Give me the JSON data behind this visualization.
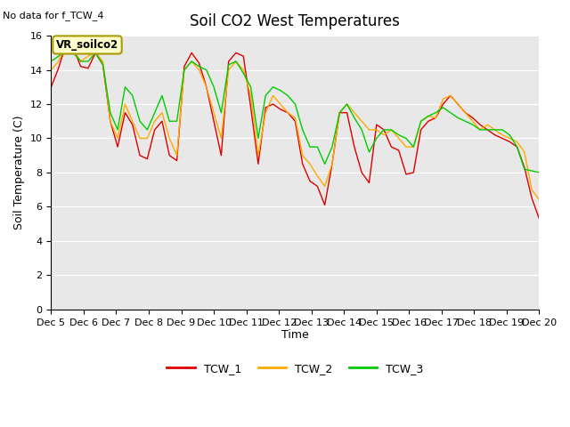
{
  "title": "Soil CO2 West Temperatures",
  "subtitle": "No data for f_TCW_4",
  "xlabel": "Time",
  "ylabel": "Soil Temperature (C)",
  "ylim": [
    0,
    16
  ],
  "yticks": [
    0,
    2,
    4,
    6,
    8,
    10,
    12,
    14,
    16
  ],
  "annotation": "VR_soilco2",
  "bg_color": "#e8e8e8",
  "line_colors": {
    "TCW_1": "#dd0000",
    "TCW_2": "#ffaa00",
    "TCW_3": "#00cc00"
  },
  "x_tick_labels": [
    "Dec 5",
    "Dec 6",
    "Dec 7",
    "Dec 8",
    "Dec 9",
    "Dec 10",
    "Dec 11",
    "Dec 12",
    "Dec 13",
    "Dec 14",
    "Dec 15",
    "Dec 16",
    "Dec 17",
    "Dec 18",
    "Dec 19",
    "Dec 20"
  ],
  "TCW_1": [
    13.0,
    14.1,
    15.5,
    15.3,
    14.2,
    14.1,
    15.0,
    14.3,
    11.0,
    9.5,
    11.5,
    10.8,
    9.0,
    8.8,
    10.5,
    11.0,
    9.0,
    8.7,
    14.2,
    15.0,
    14.4,
    13.0,
    11.0,
    9.0,
    14.5,
    15.0,
    14.8,
    11.8,
    8.5,
    11.8,
    12.0,
    11.7,
    11.5,
    11.0,
    8.5,
    7.5,
    7.2,
    6.1,
    8.5,
    11.5,
    11.5,
    9.5,
    8.0,
    7.4,
    10.8,
    10.5,
    9.5,
    9.3,
    7.9,
    8.0,
    10.5,
    11.0,
    11.2,
    12.0,
    12.5,
    12.0,
    11.5,
    11.2,
    10.8,
    10.5,
    10.2,
    10.0,
    9.8,
    9.5,
    8.3,
    6.5,
    5.3
  ],
  "TCW_2": [
    14.0,
    14.5,
    15.5,
    15.2,
    14.5,
    14.8,
    15.0,
    14.5,
    11.0,
    10.0,
    12.0,
    11.0,
    10.0,
    10.0,
    11.0,
    11.5,
    10.0,
    9.0,
    14.0,
    14.5,
    14.0,
    13.0,
    11.5,
    10.0,
    14.0,
    14.5,
    14.0,
    12.5,
    9.0,
    11.5,
    12.5,
    12.0,
    11.5,
    11.2,
    9.0,
    8.5,
    7.8,
    7.2,
    8.5,
    11.5,
    12.0,
    11.5,
    11.0,
    10.5,
    10.5,
    10.2,
    10.5,
    10.0,
    9.5,
    9.5,
    11.0,
    11.3,
    11.2,
    12.3,
    12.5,
    12.0,
    11.5,
    11.0,
    10.5,
    10.8,
    10.5,
    10.2,
    10.0,
    9.8,
    9.2,
    7.0,
    6.4
  ],
  "TCW_3": [
    14.5,
    14.8,
    15.2,
    15.0,
    14.5,
    14.5,
    15.0,
    14.3,
    11.5,
    10.5,
    13.0,
    12.5,
    11.0,
    10.5,
    11.5,
    12.5,
    11.0,
    11.0,
    14.0,
    14.5,
    14.2,
    14.0,
    13.0,
    11.5,
    14.3,
    14.5,
    13.8,
    13.0,
    10.0,
    12.5,
    13.0,
    12.8,
    12.5,
    12.0,
    10.5,
    9.5,
    9.5,
    8.5,
    9.5,
    11.5,
    12.0,
    11.2,
    10.5,
    9.2,
    10.0,
    10.5,
    10.5,
    10.2,
    10.0,
    9.5,
    11.0,
    11.3,
    11.5,
    11.8,
    11.5,
    11.2,
    11.0,
    10.8,
    10.5,
    10.5,
    10.5,
    10.5,
    10.2,
    9.5,
    8.2,
    8.1,
    8.0
  ]
}
